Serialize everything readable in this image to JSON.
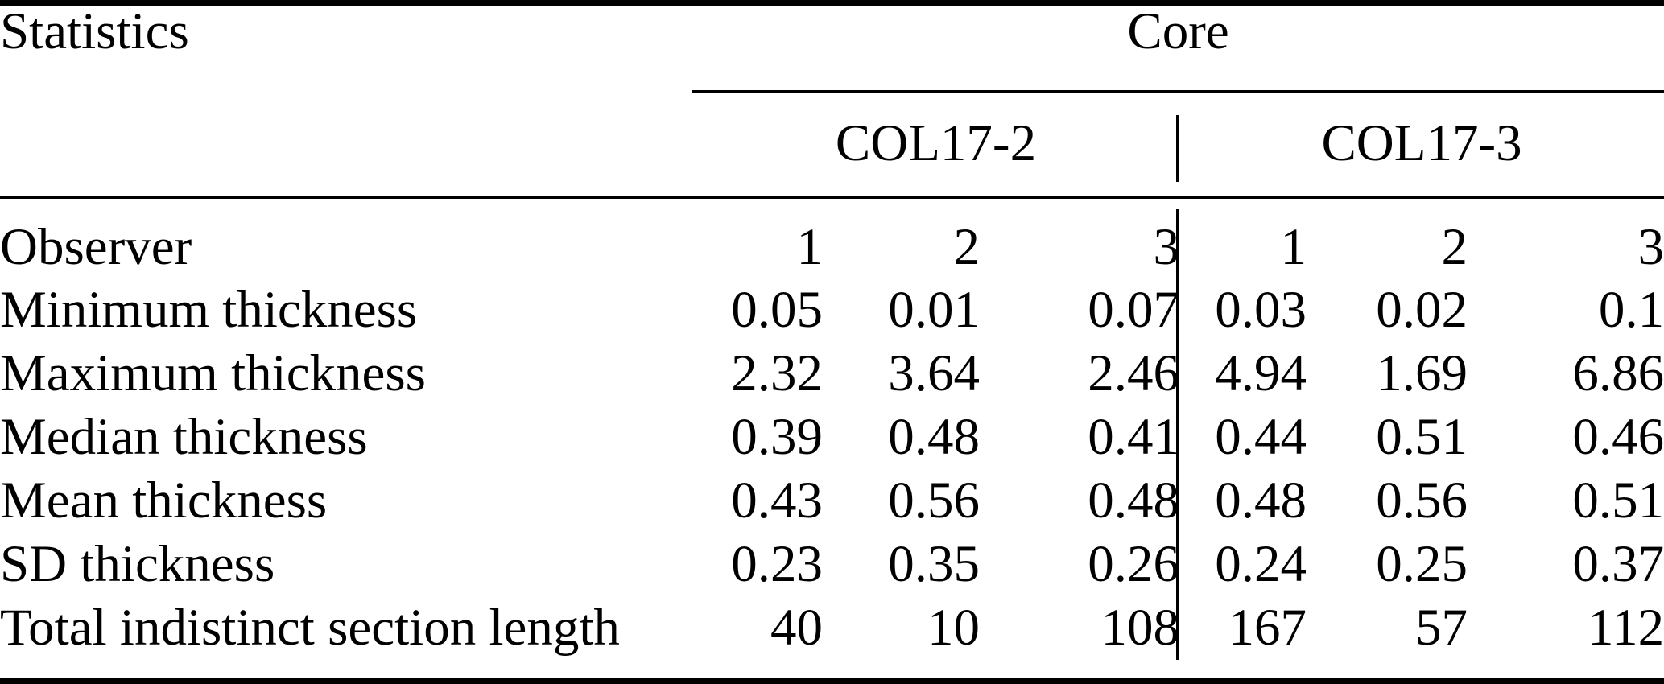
{
  "table": {
    "stat_col_header": "Statistics",
    "group_header": "Core",
    "subgroups": [
      "COL17-2",
      "COL17-3"
    ],
    "rows": [
      {
        "label": "Observer",
        "values": [
          "1",
          "2",
          "3",
          "1",
          "2",
          "3"
        ]
      },
      {
        "label": "Minimum thickness",
        "values": [
          "0.05",
          "0.01",
          "0.07",
          "0.03",
          "0.02",
          "0.1"
        ]
      },
      {
        "label": "Maximum thickness",
        "values": [
          "2.32",
          "3.64",
          "2.46",
          "4.94",
          "1.69",
          "6.86"
        ]
      },
      {
        "label": "Median thickness",
        "values": [
          "0.39",
          "0.48",
          "0.41",
          "0.44",
          "0.51",
          "0.46"
        ]
      },
      {
        "label": "Mean thickness",
        "values": [
          "0.43",
          "0.56",
          "0.48",
          "0.48",
          "0.56",
          "0.51"
        ]
      },
      {
        "label": "SD thickness",
        "values": [
          "0.23",
          "0.35",
          "0.26",
          "0.24",
          "0.25",
          "0.37"
        ]
      },
      {
        "label": "Total indistinct section length",
        "values": [
          "40",
          "10",
          "108",
          "167",
          "57",
          "112"
        ]
      }
    ]
  },
  "colors": {
    "text": "#000000",
    "background": "#ffffff",
    "rule": "#000000"
  },
  "chart_data": {
    "type": "table",
    "title": "Statistics by Core",
    "column_groups": [
      {
        "group": "Core",
        "subgroups": [
          "COL17-2",
          "COL17-3"
        ]
      }
    ],
    "columns": [
      "Statistics",
      "COL17-2 Observer 1",
      "COL17-2 Observer 2",
      "COL17-2 Observer 3",
      "COL17-3 Observer 1",
      "COL17-3 Observer 2",
      "COL17-3 Observer 3"
    ],
    "rows": [
      [
        "Observer",
        1,
        2,
        3,
        1,
        2,
        3
      ],
      [
        "Minimum thickness",
        0.05,
        0.01,
        0.07,
        0.03,
        0.02,
        0.1
      ],
      [
        "Maximum thickness",
        2.32,
        3.64,
        2.46,
        4.94,
        1.69,
        6.86
      ],
      [
        "Median thickness",
        0.39,
        0.48,
        0.41,
        0.44,
        0.51,
        0.46
      ],
      [
        "Mean thickness",
        0.43,
        0.56,
        0.48,
        0.48,
        0.56,
        0.51
      ],
      [
        "SD thickness",
        0.23,
        0.35,
        0.26,
        0.24,
        0.25,
        0.37
      ],
      [
        "Total indistinct section length",
        40,
        10,
        108,
        167,
        57,
        112
      ]
    ]
  }
}
